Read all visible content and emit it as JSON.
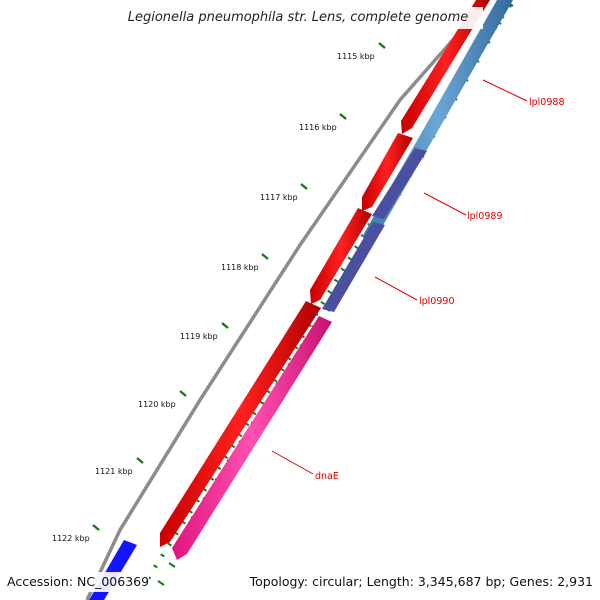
{
  "title": "Legionella pneumophila str. Lens, complete genome",
  "footer": {
    "accession": "Accession: NC_006369",
    "summary": "Topology: circular; Length: 3,345,687 bp; Genes: 2,931"
  },
  "ticks": [
    "1115 kbp",
    "1116 kbp",
    "1117 kbp",
    "1118 kbp",
    "1119 kbp",
    "1120 kbp",
    "1121 kbp",
    "1122 kbp"
  ],
  "genes": [
    "lpl0988",
    "lpl0989",
    "lpl0990",
    "dnaE"
  ],
  "colors": {
    "backbone": "#8c8c8c",
    "cds_forward": "#ff0000",
    "cds_blue": "#4f8fc4",
    "cds_purple": "#4b4fa0",
    "cds_pink": "#ff2f9a",
    "cds_bright_blue": "#1414ff",
    "tick": "#1a7a1a",
    "gene_label": "#e00000"
  }
}
